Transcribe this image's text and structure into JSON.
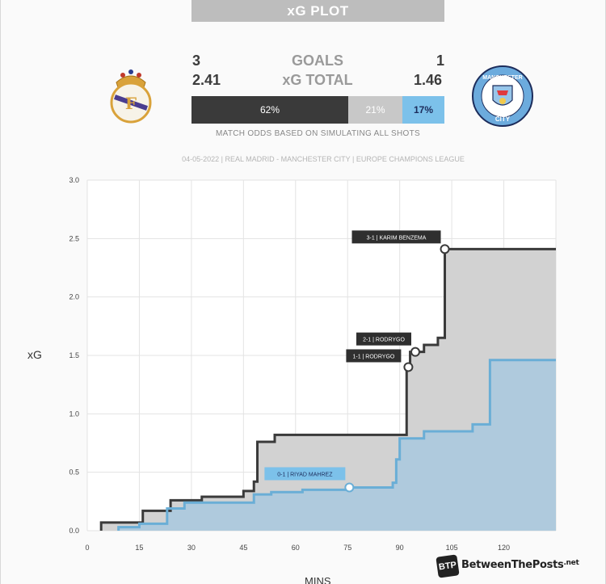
{
  "header": {
    "title": "xG PLOT",
    "goals_label": "GOALS",
    "xg_label": "xG TOTAL",
    "home_goals": "3",
    "away_goals": "1",
    "home_xg": "2.41",
    "away_xg": "1.46",
    "odds_home": "62%",
    "odds_draw": "21%",
    "odds_away": "17%",
    "odds_note": "MATCH ODDS BASED ON SIMULATING ALL SHOTS",
    "match_info": "04-05-2022 | REAL MADRID - MANCHESTER CITY | EUROPE CHAMPIONS LEAGUE"
  },
  "badges": {
    "home_icon": "real-madrid-crest",
    "away_icon": "manchester-city-crest",
    "away_text_top": "MANCHESTER",
    "away_text_bottom": "CITY"
  },
  "watermark": {
    "logo": "BTP",
    "text": "BetweenThePosts",
    "suffix": ".net"
  },
  "colors": {
    "home": "#3a3a3a",
    "away": "#6aaed6",
    "home_fill": "#d2d2d2",
    "away_fill": "#a9c9df",
    "draw": "#c4c4c4",
    "away_odds": "#7cc1ea"
  },
  "chart_data": {
    "type": "area",
    "xlabel": "MINS",
    "ylabel": "xG",
    "xlim": [
      0,
      135
    ],
    "ylim": [
      0,
      3.0
    ],
    "x_ticks": [
      0,
      15,
      30,
      45,
      60,
      75,
      90,
      105,
      120
    ],
    "y_ticks": [
      "0.0",
      "0.5",
      "1.0",
      "1.5",
      "2.0",
      "2.5",
      "3.0"
    ],
    "grid": true,
    "series": [
      {
        "name": "Real Madrid",
        "step_x": [
          4,
          11,
          16,
          18,
          24,
          26,
          33,
          40,
          45,
          48,
          49,
          54,
          61,
          72,
          76,
          80,
          85,
          92,
          93,
          95,
          97,
          100,
          101,
          103,
          107,
          135
        ],
        "step_y": [
          0.07,
          0.07,
          0.17,
          0.17,
          0.26,
          0.26,
          0.29,
          0.29,
          0.34,
          0.42,
          0.76,
          0.82,
          0.82,
          0.82,
          0.82,
          0.82,
          0.82,
          1.4,
          1.53,
          1.53,
          1.59,
          1.59,
          1.65,
          2.41,
          2.41,
          2.41
        ]
      },
      {
        "name": "Manchester City",
        "step_x": [
          9,
          15,
          20,
          23,
          28,
          32,
          36,
          40,
          48,
          53,
          62,
          70,
          75,
          82,
          88,
          89,
          90,
          97,
          103,
          111,
          116,
          135
        ],
        "step_y": [
          0.03,
          0.06,
          0.06,
          0.19,
          0.24,
          0.24,
          0.24,
          0.24,
          0.31,
          0.33,
          0.35,
          0.35,
          0.37,
          0.37,
          0.41,
          0.61,
          0.79,
          0.85,
          0.85,
          0.91,
          1.46,
          1.46
        ]
      }
    ],
    "annotations": [
      {
        "text": "3-1 | KARIM BENZEMA",
        "x": 103,
        "y": 2.41,
        "team": "home"
      },
      {
        "text": "2-1 | RODRYGO",
        "x": 94.5,
        "y": 1.53,
        "team": "home"
      },
      {
        "text": "1-1 | RODRYGO",
        "x": 92.5,
        "y": 1.4,
        "team": "home"
      },
      {
        "text": "0-1 | RIYAD MAHREZ",
        "x": 75.5,
        "y": 0.37,
        "team": "away"
      }
    ]
  }
}
